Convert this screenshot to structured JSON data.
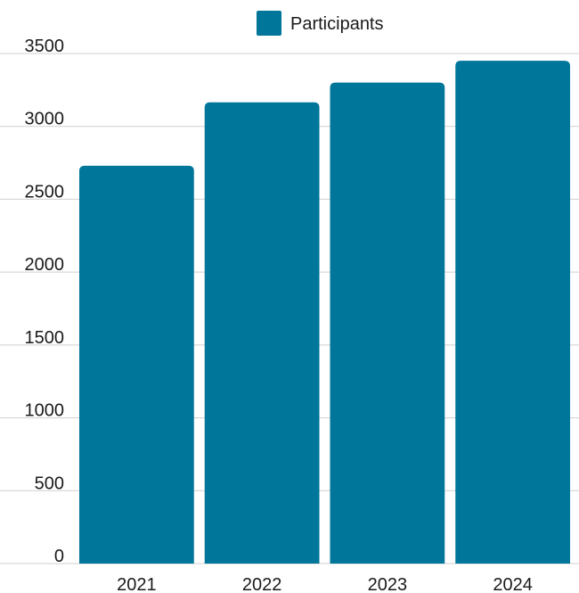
{
  "chart_data": {
    "type": "bar",
    "categories": [
      "2021",
      "2022",
      "2023",
      "2024"
    ],
    "series": [
      {
        "name": "Participants",
        "values": [
          2730,
          3165,
          3300,
          3450
        ],
        "color": "#00769a"
      }
    ],
    "title": "",
    "xlabel": "",
    "ylabel": "",
    "ylim": [
      0,
      3500
    ],
    "yticks": [
      0,
      500,
      1000,
      1500,
      2000,
      2500,
      3000,
      3500
    ],
    "grid": true,
    "legend": "top-center",
    "legend_icon": "legend-swatch-square"
  }
}
